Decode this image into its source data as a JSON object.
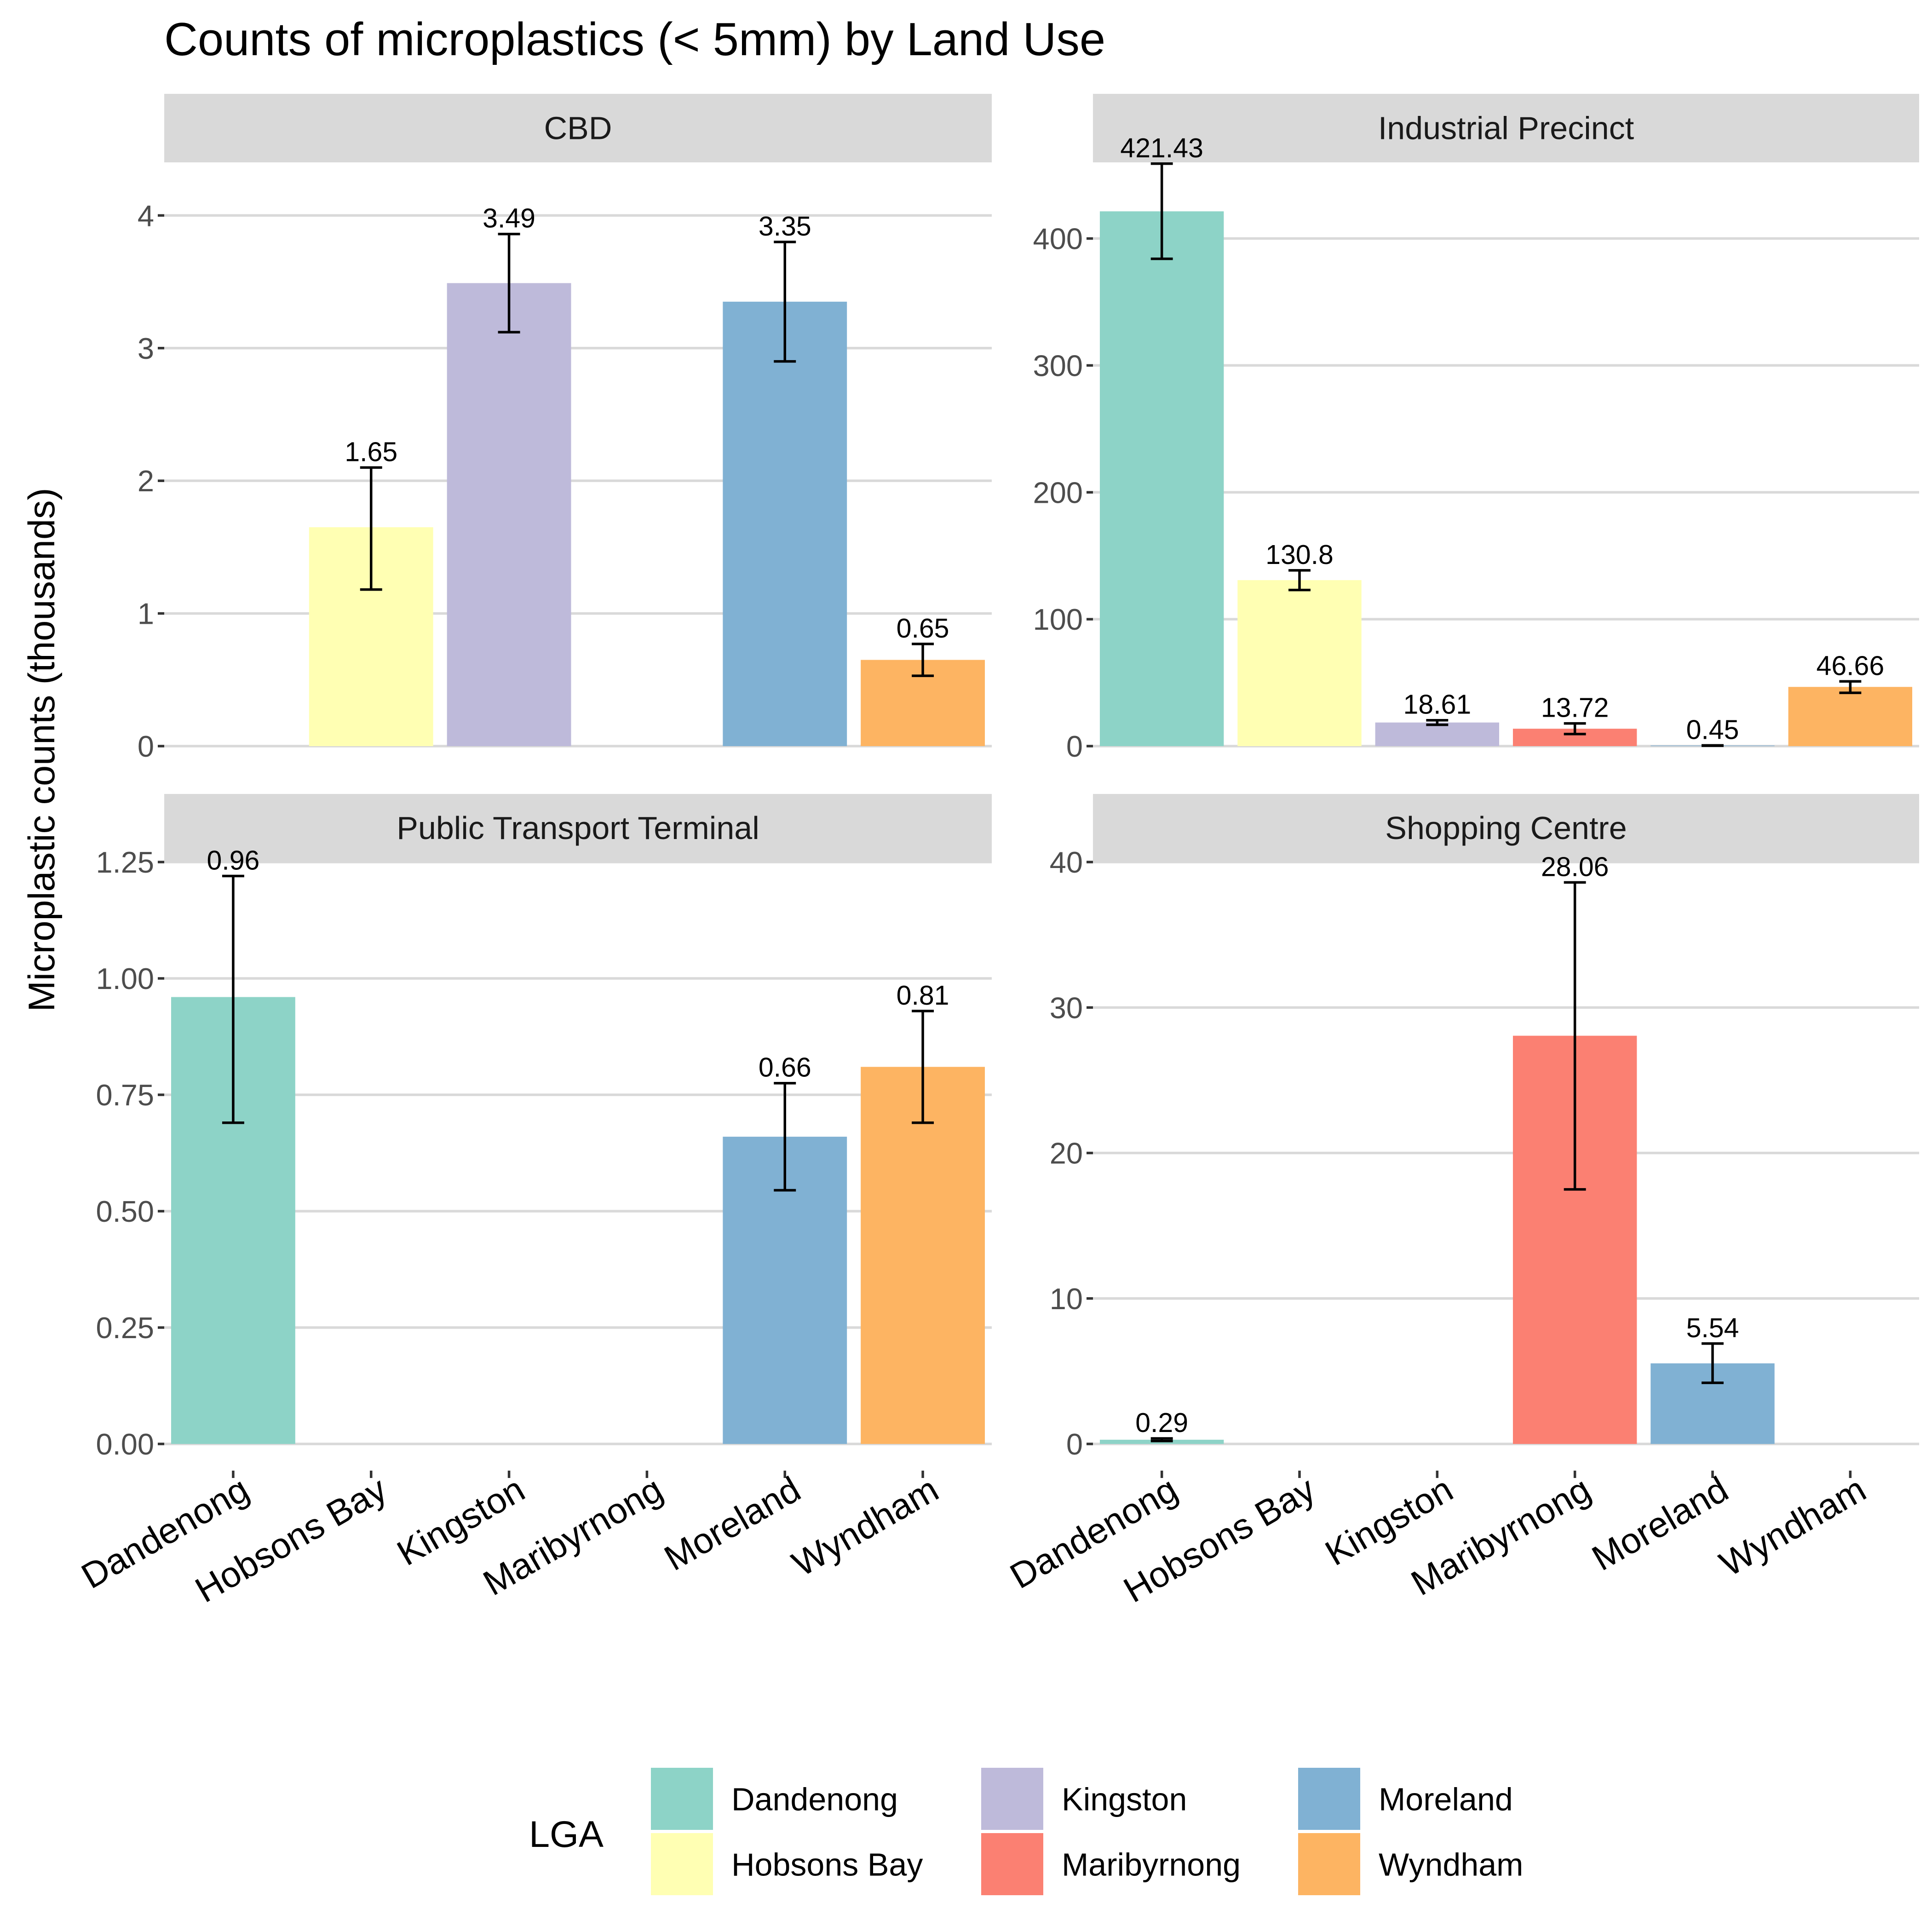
{
  "chart_data": {
    "type": "bar",
    "title": "Counts of microplastics (< 5mm) by Land Use",
    "ylabel": "Microplastic counts (thousands)",
    "xlabel": "",
    "categories": [
      "Dandenong",
      "Hobsons Bay",
      "Kingston",
      "Maribyrnong",
      "Moreland",
      "Wyndham"
    ],
    "colors": {
      "Dandenong": "#8DD3C7",
      "Hobsons Bay": "#FFFFB3",
      "Kingston": "#BEBADA",
      "Maribyrnong": "#FB8072",
      "Moreland": "#80B1D3",
      "Wyndham": "#FDB462"
    },
    "legend": {
      "title": "LGA",
      "position": "bottom",
      "items": [
        "Dandenong",
        "Hobsons Bay",
        "Kingston",
        "Maribyrnong",
        "Moreland",
        "Wyndham"
      ]
    },
    "grid": true,
    "panels": [
      {
        "name": "CBD",
        "ylim": [
          0,
          4.4
        ],
        "yticks": [
          0,
          1,
          2,
          3,
          4
        ],
        "ytick_labels": [
          "0",
          "1",
          "2",
          "3",
          "4"
        ],
        "values": [
          null,
          1.65,
          3.49,
          null,
          3.35,
          0.65
        ],
        "err_low": [
          null,
          1.18,
          3.12,
          null,
          2.9,
          0.53
        ],
        "err_high": [
          null,
          2.1,
          3.86,
          null,
          3.8,
          0.77
        ],
        "labels": [
          "",
          "1.65",
          "3.49",
          "",
          "3.35",
          "0.65"
        ]
      },
      {
        "name": "Industrial Precinct",
        "ylim": [
          0,
          460
        ],
        "yticks": [
          0,
          100,
          200,
          300,
          400
        ],
        "ytick_labels": [
          "0",
          "100",
          "200",
          "300",
          "400"
        ],
        "values": [
          421.43,
          130.8,
          18.61,
          13.72,
          0.45,
          46.66
        ],
        "err_low": [
          384,
          123,
          16.8,
          9.5,
          0.3,
          42
        ],
        "err_high": [
          459,
          138.5,
          20.4,
          17.9,
          0.6,
          51
        ],
        "labels": [
          "421.43",
          "130.8",
          "18.61",
          "13.72",
          "0.45",
          "46.66"
        ]
      },
      {
        "name": "Public Transport Terminal",
        "ylim": [
          0,
          1.25
        ],
        "yticks": [
          0,
          0.25,
          0.5,
          0.75,
          1,
          1.25
        ],
        "ytick_labels": [
          "0.00",
          "0.25",
          "0.50",
          "0.75",
          "1.00",
          "1.25"
        ],
        "values": [
          0.96,
          null,
          null,
          null,
          0.66,
          0.81
        ],
        "err_low": [
          0.69,
          null,
          null,
          null,
          0.545,
          0.69
        ],
        "err_high": [
          1.22,
          null,
          null,
          null,
          0.775,
          0.93
        ],
        "labels": [
          "0.96",
          "",
          "",
          "",
          "0.66",
          "0.81"
        ]
      },
      {
        "name": "Shopping Centre",
        "ylim": [
          0,
          40
        ],
        "yticks": [
          0,
          10,
          20,
          30,
          40
        ],
        "ytick_labels": [
          "0",
          "10",
          "20",
          "30",
          "40"
        ],
        "values": [
          0.29,
          null,
          null,
          28.06,
          5.54,
          null
        ],
        "err_low": [
          0.2,
          null,
          null,
          17.5,
          4.2,
          null
        ],
        "err_high": [
          0.38,
          null,
          null,
          38.6,
          6.9,
          null
        ],
        "labels": [
          "0.29",
          "",
          "",
          "28.06",
          "5.54",
          ""
        ]
      }
    ]
  }
}
